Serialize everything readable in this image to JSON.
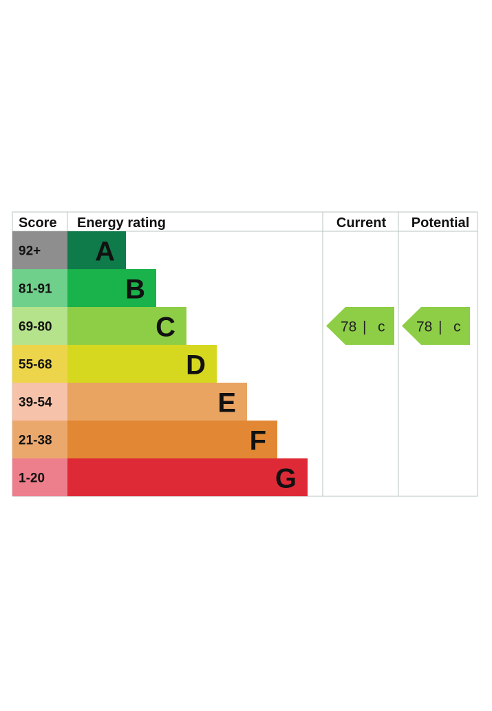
{
  "chart_data": {
    "type": "bar",
    "headers": {
      "score": "Score",
      "rating": "Energy rating",
      "current": "Current",
      "potential": "Potential"
    },
    "bands": [
      {
        "score": "92+",
        "letter": "A",
        "color": "#0f7a4a",
        "score_bg": "#8e8e8e",
        "rel_length": 1
      },
      {
        "score": "81-91",
        "letter": "B",
        "color": "#19b24b",
        "score_bg": "#6fd08c",
        "rel_length": 2
      },
      {
        "score": "69-80",
        "letter": "C",
        "color": "#8dce46",
        "score_bg": "#b5e38c",
        "rel_length": 3
      },
      {
        "score": "55-68",
        "letter": "D",
        "color": "#d6d820",
        "score_bg": "#ecd54a",
        "rel_length": 4
      },
      {
        "score": "39-54",
        "letter": "E",
        "color": "#e9a462",
        "score_bg": "#f6c2a9",
        "rel_length": 5
      },
      {
        "score": "21-38",
        "letter": "F",
        "color": "#e28834",
        "score_bg": "#eaa86d",
        "rel_length": 6
      },
      {
        "score": "1-20",
        "letter": "G",
        "color": "#de2a37",
        "score_bg": "#ed7f8c",
        "rel_length": 7
      }
    ],
    "current": {
      "value": "78",
      "sep": "|",
      "letter": "c",
      "band": "C",
      "color": "#8dce46"
    },
    "potential": {
      "value": "78",
      "sep": "|",
      "letter": "c",
      "band": "C",
      "color": "#8dce46"
    }
  }
}
